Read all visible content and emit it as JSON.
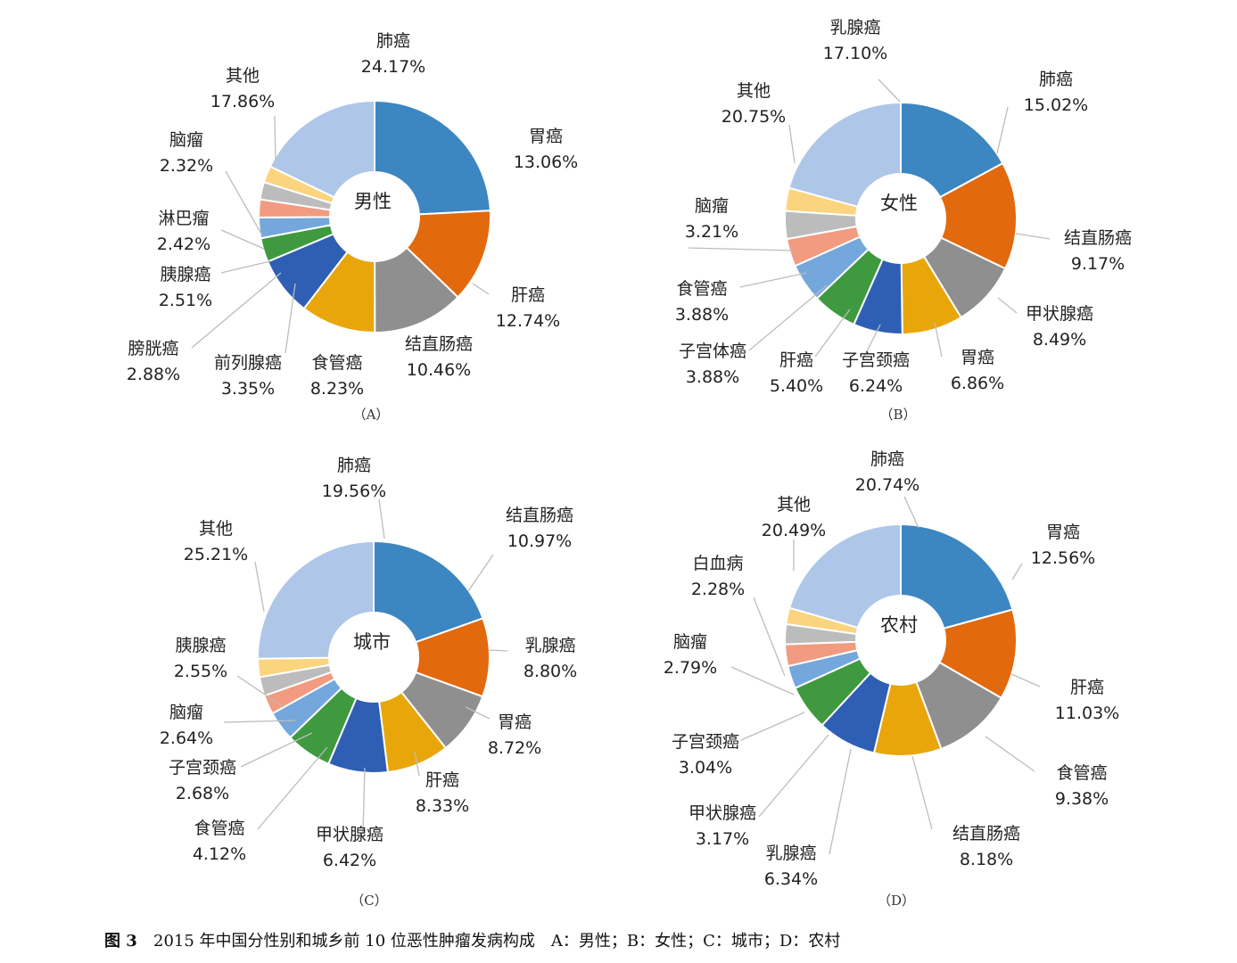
{
  "chart_data": [
    {
      "type": "donut",
      "center_label": "男性",
      "subtitle": "（A）",
      "categories": [
        "肺癌",
        "胃癌",
        "肝癌",
        "结直肠癌",
        "食管癌",
        "前列腺癌",
        "膀胱癌",
        "胰腺癌",
        "淋巴瘤",
        "脑瘤",
        "其他"
      ],
      "values": [
        24.17,
        13.06,
        12.74,
        10.46,
        8.23,
        3.35,
        2.88,
        2.51,
        2.42,
        2.32,
        17.86
      ],
      "value_labels": [
        "24.17%",
        "13.06%",
        "12.74%",
        "10.46%",
        "8.23%",
        "3.35%",
        "2.88%",
        "2.51%",
        "2.42%",
        "2.32%",
        "17.86%"
      ],
      "colors": [
        "#3c86c2",
        "#e2690e",
        "#8f8f8f",
        "#e8a60b",
        "#2f5fb4",
        "#3f9a3f",
        "#74a7dc",
        "#f19b80",
        "#bcbcbc",
        "#fbd480",
        "#aec6e8"
      ]
    },
    {
      "type": "donut",
      "center_label": "女性",
      "subtitle": "（B）",
      "categories": [
        "乳腺癌",
        "肺癌",
        "结直肠癌",
        "甲状腺癌",
        "胃癌",
        "子宫颈癌",
        "肝癌",
        "子宫体癌",
        "食管癌",
        "脑瘤",
        "其他"
      ],
      "values": [
        17.1,
        15.02,
        9.17,
        8.49,
        6.86,
        6.24,
        5.4,
        3.88,
        3.88,
        3.21,
        20.75
      ],
      "value_labels": [
        "17.10%",
        "15.02%",
        "9.17%",
        "8.49%",
        "6.86%",
        "6.24%",
        "5.40%",
        "3.88%",
        "3.88%",
        "3.21%",
        "20.75%"
      ],
      "colors": [
        "#3c86c2",
        "#e2690e",
        "#8f8f8f",
        "#e8a60b",
        "#2f5fb4",
        "#3f9a3f",
        "#74a7dc",
        "#f19b80",
        "#bcbcbc",
        "#fbd480",
        "#aec6e8"
      ]
    },
    {
      "type": "donut",
      "center_label": "城市",
      "subtitle": "（C）",
      "categories": [
        "肺癌",
        "结直肠癌",
        "乳腺癌",
        "胃癌",
        "肝癌",
        "甲状腺癌",
        "食管癌",
        "子宫颈癌",
        "脑瘤",
        "胰腺癌",
        "其他"
      ],
      "values": [
        19.56,
        10.97,
        8.8,
        8.72,
        8.33,
        6.42,
        4.12,
        2.68,
        2.64,
        2.55,
        25.21
      ],
      "value_labels": [
        "19.56%",
        "10.97%",
        "8.80%",
        "8.72%",
        "8.33%",
        "6.42%",
        "4.12%",
        "2.68%",
        "2.64%",
        "2.55%",
        "25.21%"
      ],
      "colors": [
        "#3c86c2",
        "#e2690e",
        "#8f8f8f",
        "#e8a60b",
        "#2f5fb4",
        "#3f9a3f",
        "#74a7dc",
        "#f19b80",
        "#bcbcbc",
        "#fbd480",
        "#aec6e8"
      ]
    },
    {
      "type": "donut",
      "center_label": "农村",
      "subtitle": "（D）",
      "categories": [
        "肺癌",
        "胃癌",
        "肝癌",
        "食管癌",
        "结直肠癌",
        "乳腺癌",
        "甲状腺癌",
        "子宫颈癌",
        "脑瘤",
        "白血病",
        "其他"
      ],
      "values": [
        20.74,
        12.56,
        11.03,
        9.38,
        8.18,
        6.34,
        3.17,
        3.04,
        2.79,
        2.28,
        20.49
      ],
      "value_labels": [
        "20.74%",
        "12.56%",
        "11.03%",
        "9.38%",
        "8.18%",
        "6.34%",
        "3.17%",
        "3.04%",
        "2.79%",
        "2.28%",
        "20.49%"
      ],
      "colors": [
        "#3c86c2",
        "#e2690e",
        "#8f8f8f",
        "#e8a60b",
        "#2f5fb4",
        "#3f9a3f",
        "#74a7dc",
        "#f19b80",
        "#bcbcbc",
        "#fbd480",
        "#aec6e8"
      ]
    }
  ],
  "caption": {
    "figure_no": "图 3",
    "text": "2015 年中国分性别和城乡前 10 位恶性肿瘤发病构成　A：男性；B：女性；C：城市；D：农村"
  }
}
